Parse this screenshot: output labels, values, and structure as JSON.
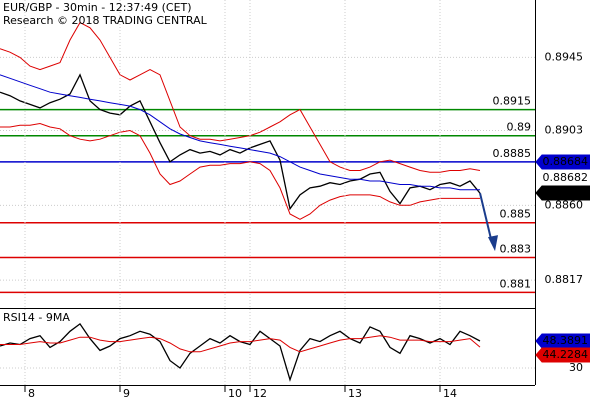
{
  "chart_data": [
    {
      "type": "line",
      "title": "EUR/GBP - 30min - 12:37:49 (CET)",
      "subtitle": "Research © 2018 TRADING CENTRAL",
      "x": [
        0,
        2,
        4,
        6,
        8,
        10,
        12,
        14,
        16,
        18,
        20,
        22,
        24,
        26,
        28,
        30,
        32,
        34,
        36,
        38,
        40,
        42,
        44,
        46,
        48,
        50,
        52,
        54,
        56,
        58,
        60,
        62,
        64,
        66,
        68,
        70,
        72,
        74,
        76,
        78,
        80,
        82,
        84,
        86,
        88,
        90,
        92,
        94,
        96
      ],
      "xlim": [
        0,
        107
      ],
      "ylim": [
        0.8801,
        0.8978
      ],
      "yticks": [
        0.8945,
        0.8903,
        {
          "value": 0.886,
          "label": "0.8860"
        },
        0.8817
      ],
      "grid": true,
      "series": [
        {
          "color": "#000000",
          "values": [
            0.8925,
            0.8923,
            0.892,
            0.8918,
            0.8916,
            0.8919,
            0.8921,
            0.8924,
            0.8935,
            0.892,
            0.8915,
            0.8913,
            0.8912,
            0.8917,
            0.892,
            0.8908,
            0.8896,
            0.8885,
            0.8889,
            0.8892,
            0.889,
            0.8891,
            0.8889,
            0.8892,
            0.889,
            0.8893,
            0.8895,
            0.8897,
            0.8886,
            0.8858,
            0.8866,
            0.887,
            0.8871,
            0.8873,
            0.8872,
            0.8874,
            0.8875,
            0.8878,
            0.8879,
            0.8868,
            0.8861,
            0.887,
            0.8871,
            0.8869,
            0.8872,
            0.8873,
            0.8871,
            0.8874,
            0.8867
          ]
        },
        {
          "color": "#dd0000",
          "values": [
            0.895,
            0.8948,
            0.8945,
            0.894,
            0.8938,
            0.894,
            0.8942,
            0.8955,
            0.8965,
            0.8962,
            0.8955,
            0.8945,
            0.8935,
            0.8932,
            0.8935,
            0.8938,
            0.8935,
            0.892,
            0.8905,
            0.89,
            0.8898,
            0.8898,
            0.8897,
            0.8898,
            0.8899,
            0.89,
            0.8902,
            0.8905,
            0.8908,
            0.8912,
            0.8915,
            0.8905,
            0.8895,
            0.8885,
            0.8882,
            0.888,
            0.888,
            0.8882,
            0.8885,
            0.8886,
            0.8884,
            0.8882,
            0.888,
            0.8879,
            0.8879,
            0.888,
            0.888,
            0.8881,
            0.888
          ]
        },
        {
          "color": "#dd0000",
          "values": [
            0.8905,
            0.8905,
            0.8906,
            0.8906,
            0.8907,
            0.8905,
            0.8904,
            0.89,
            0.8898,
            0.8897,
            0.8898,
            0.89,
            0.8902,
            0.8903,
            0.89,
            0.889,
            0.8878,
            0.8872,
            0.8874,
            0.8878,
            0.8882,
            0.8883,
            0.8883,
            0.8884,
            0.8884,
            0.8885,
            0.8884,
            0.888,
            0.887,
            0.8855,
            0.8852,
            0.8855,
            0.886,
            0.8863,
            0.8865,
            0.8866,
            0.8866,
            0.8866,
            0.8865,
            0.8862,
            0.886,
            0.886,
            0.8862,
            0.8863,
            0.8864,
            0.8864,
            0.8864,
            0.8864,
            0.8864
          ]
        },
        {
          "color": "#0000cc",
          "values": [
            0.8935,
            0.8933,
            0.8931,
            0.8929,
            0.8927,
            0.8925,
            0.8924,
            0.8923,
            0.8922,
            0.8921,
            0.892,
            0.8919,
            0.8918,
            0.8917,
            0.8915,
            0.8912,
            0.8908,
            0.8904,
            0.8901,
            0.8899,
            0.8897,
            0.8896,
            0.8895,
            0.8894,
            0.8893,
            0.8892,
            0.8891,
            0.889,
            0.8888,
            0.8885,
            0.8882,
            0.888,
            0.8878,
            0.8877,
            0.8876,
            0.8875,
            0.8875,
            0.8874,
            0.8874,
            0.8873,
            0.8872,
            0.8872,
            0.8871,
            0.8871,
            0.887,
            0.887,
            0.8869,
            0.8869,
            0.8869
          ]
        }
      ],
      "levels": [
        0.8915,
        0.89,
        0.8885,
        0.885,
        0.883,
        0.881
      ],
      "level_colors": [
        "#008800",
        "#008800",
        "#0000cc",
        "#dd0000",
        "#dd0000",
        "#dd0000"
      ],
      "markers": [
        0.88684,
        0.88682,
        0.88668
      ],
      "marker_colors": [
        "#0000cc",
        "#ffffff",
        "#000000"
      ]
    },
    {
      "type": "line",
      "title": "RSI14 - 9MA",
      "x": [
        0,
        2,
        4,
        6,
        8,
        10,
        12,
        14,
        16,
        18,
        20,
        22,
        24,
        26,
        28,
        30,
        32,
        34,
        36,
        38,
        40,
        42,
        44,
        46,
        48,
        50,
        52,
        54,
        56,
        58,
        60,
        62,
        64,
        66,
        68,
        70,
        72,
        74,
        76,
        78,
        80,
        82,
        84,
        86,
        88,
        90,
        92,
        94,
        96
      ],
      "xlim": [
        0,
        107
      ],
      "xticks": [
        {
          "value": 5,
          "label": "8"
        },
        {
          "value": 24,
          "label": "9"
        },
        {
          "value": 45,
          "label": "10"
        },
        {
          "value": 50,
          "label": "12"
        },
        {
          "value": 69,
          "label": "13"
        },
        {
          "value": 88,
          "label": "14"
        }
      ],
      "ylim": [
        18.4,
        69.5
      ],
      "yticks": [
        30
      ],
      "grid": true,
      "series": [
        {
          "color": "#000000",
          "values": [
            45,
            47,
            46,
            50,
            52,
            44,
            48,
            55,
            60,
            50,
            42,
            45,
            50,
            52,
            55,
            53,
            48,
            35,
            30,
            40,
            45,
            50,
            47,
            52,
            48,
            46,
            55,
            50,
            45,
            22,
            42,
            50,
            48,
            52,
            55,
            50,
            47,
            58,
            55,
            44,
            40,
            52,
            50,
            47,
            50,
            46,
            55,
            52,
            48.3891
          ]
        },
        {
          "color": "#dd0000",
          "values": [
            46,
            46,
            46,
            47,
            48,
            47,
            47,
            49,
            51,
            51,
            49,
            48,
            48,
            49,
            50,
            51,
            50,
            47,
            43,
            41,
            41,
            43,
            45,
            47,
            48,
            48,
            49,
            50,
            49,
            44,
            41,
            43,
            45,
            47,
            49,
            50,
            50,
            51,
            52,
            51,
            49,
            49,
            49,
            48,
            48,
            48,
            49,
            50,
            44.2284
          ]
        }
      ],
      "markers": [
        48.3891,
        44.2284
      ],
      "marker_colors": [
        "#0000cc",
        "#dd0000"
      ]
    }
  ]
}
